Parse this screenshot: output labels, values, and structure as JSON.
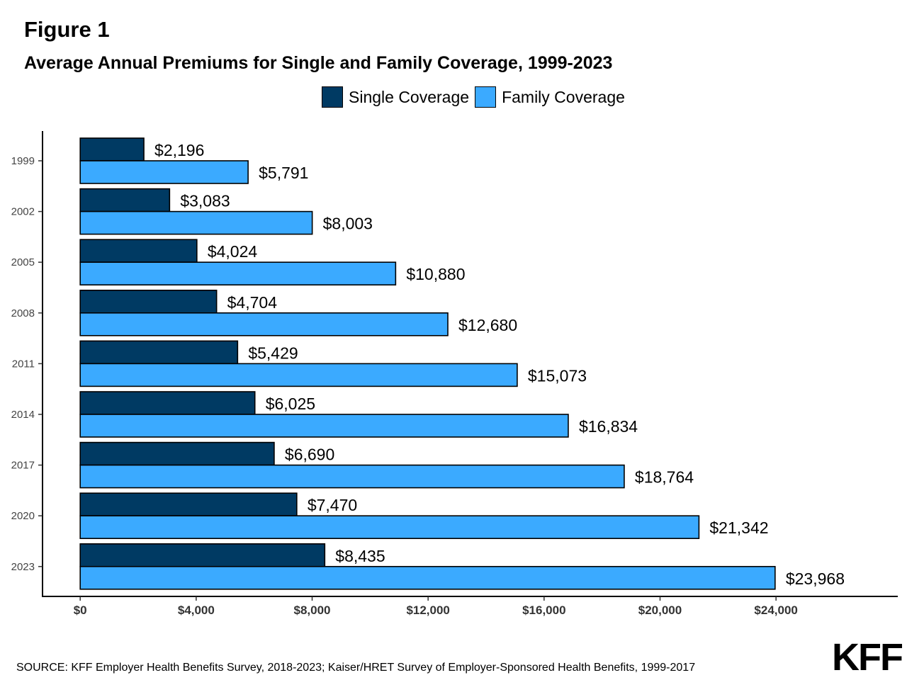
{
  "figure_label": "Figure 1",
  "logo_text": "KFF",
  "source": "SOURCE: KFF Employer Health Benefits Survey, 2018-2023; Kaiser/HRET Survey of Employer-Sponsored Health Benefits, 1999-2017",
  "colors": {
    "single": "#003A63",
    "family": "#3BAAFF",
    "outline": "#000000"
  },
  "chart_data": {
    "type": "bar",
    "orientation": "horizontal",
    "title": "Average Annual Premiums for Single and Family Coverage, 1999-2023",
    "categories": [
      "1999",
      "2002",
      "2005",
      "2008",
      "2011",
      "2014",
      "2017",
      "2020",
      "2023"
    ],
    "series": [
      {
        "name": "Single Coverage",
        "values": [
          2196,
          3083,
          4024,
          4704,
          5429,
          6025,
          6690,
          7470,
          8435
        ],
        "labels": [
          "$2,196",
          "$3,083",
          "$4,024",
          "$4,704",
          "$5,429",
          "$6,025",
          "$6,690",
          "$7,470",
          "$8,435"
        ]
      },
      {
        "name": "Family Coverage",
        "values": [
          5791,
          8003,
          10880,
          12680,
          15073,
          16834,
          18764,
          21342,
          23968
        ],
        "labels": [
          "$5,791",
          "$8,003",
          "$10,880",
          "$12,680",
          "$15,073",
          "$16,834",
          "$18,764",
          "$21,342",
          "$23,968"
        ]
      }
    ],
    "xticks": [
      0,
      4000,
      8000,
      12000,
      16000,
      20000,
      24000
    ],
    "xtick_labels": [
      "$0",
      "$4,000",
      "$8,000",
      "$12,000",
      "$16,000",
      "$20,000",
      "$24,000"
    ],
    "xlim": [
      -1300,
      28200
    ],
    "legend_position": "top",
    "grid": false
  }
}
